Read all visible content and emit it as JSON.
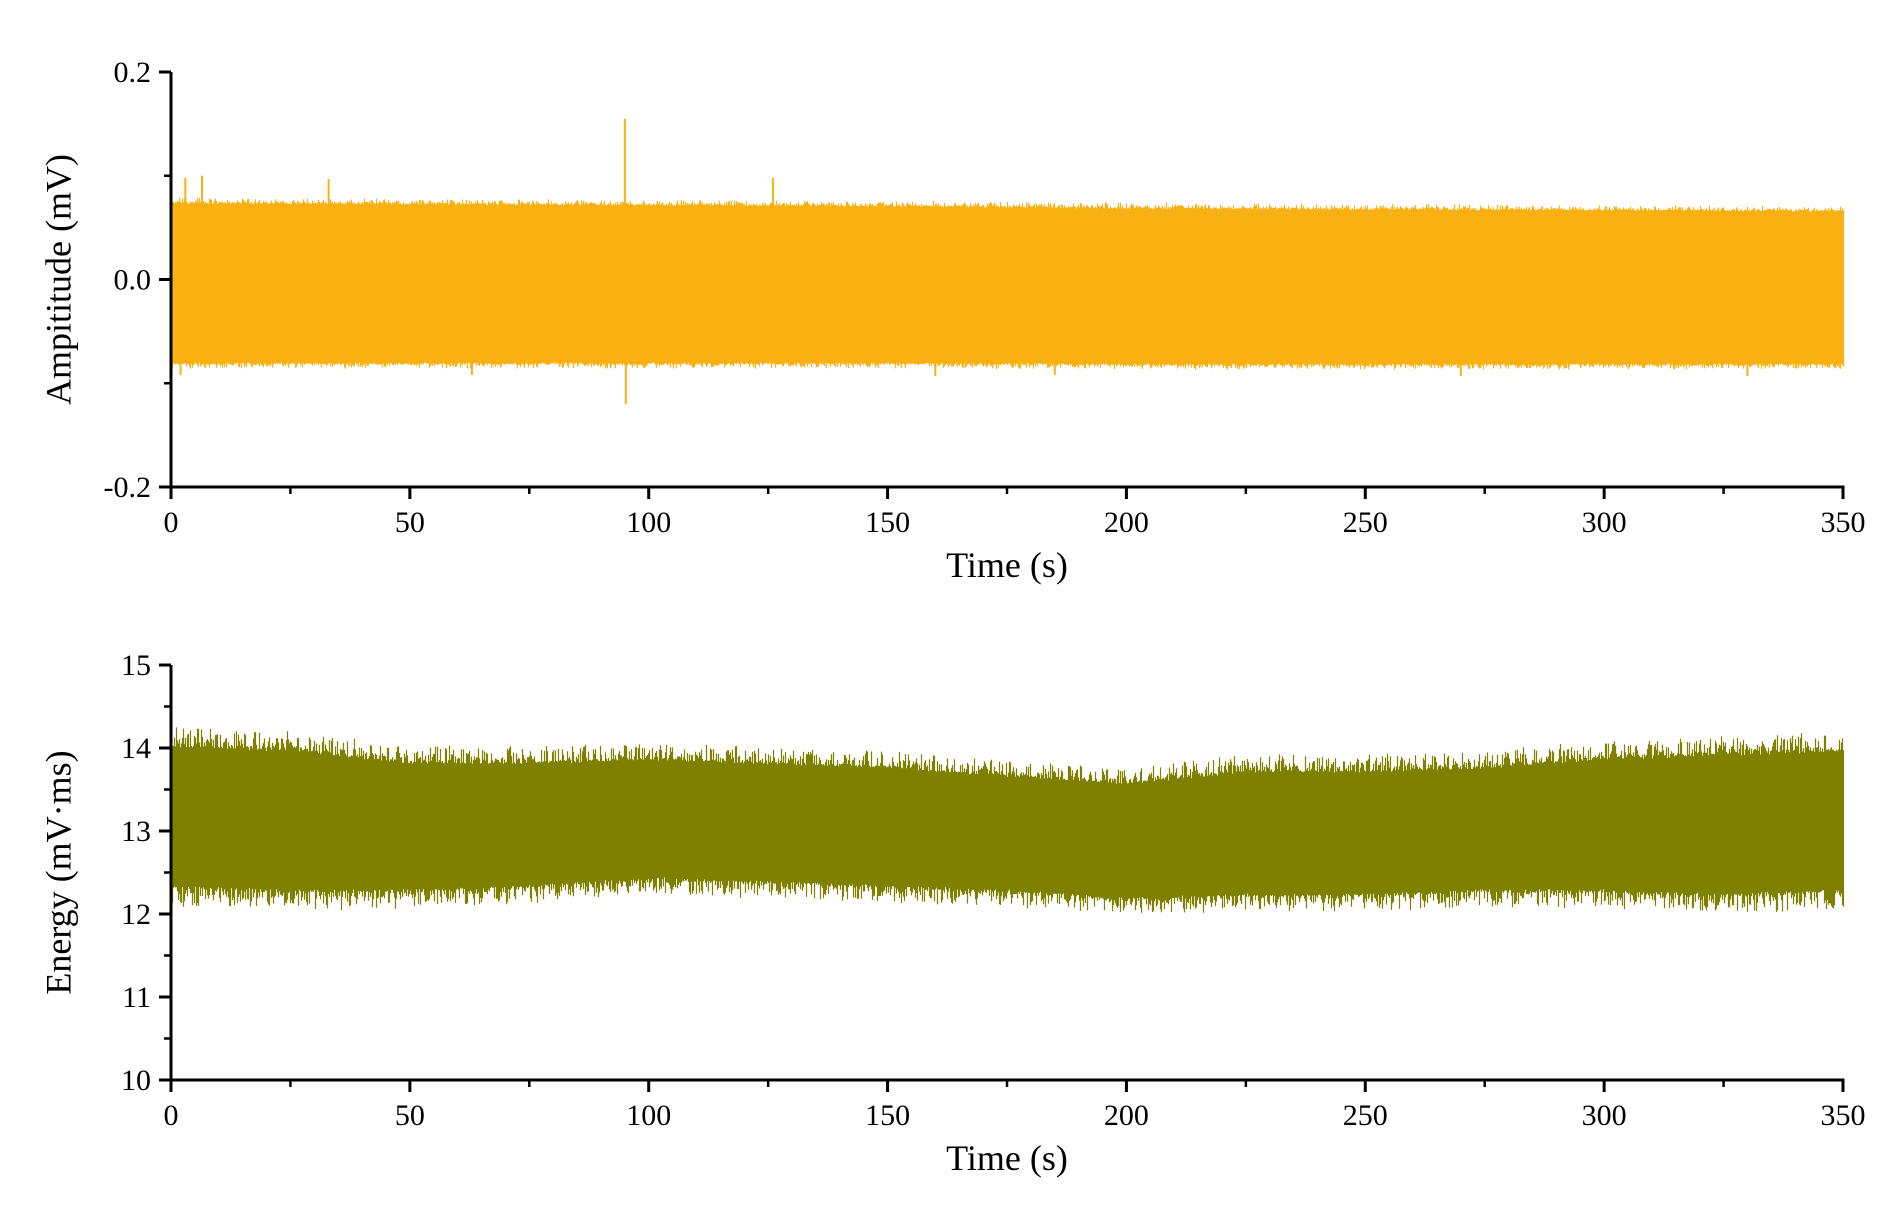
{
  "chart_data": [
    {
      "type": "line",
      "title": "",
      "xlabel": "Time (s)",
      "ylabel": "Ampititude (mV)",
      "xlim": [
        0,
        350
      ],
      "ylim": [
        -0.2,
        0.2
      ],
      "x_ticks": [
        "0",
        "50",
        "100",
        "150",
        "200",
        "250",
        "300",
        "350"
      ],
      "y_ticks": [
        "-0.2",
        "0.0",
        "0.2"
      ],
      "grid": false,
      "legend": "none",
      "color": "#F9B012",
      "series": [
        {
          "envelope_upper": [
            [
              0,
              0.073
            ],
            [
              50,
              0.072
            ],
            [
              100,
              0.071
            ],
            [
              150,
              0.07
            ],
            [
              200,
              0.068
            ],
            [
              250,
              0.067
            ],
            [
              300,
              0.066
            ],
            [
              350,
              0.065
            ]
          ],
          "envelope_lower": [
            [
              0,
              -0.08
            ],
            [
              50,
              -0.08
            ],
            [
              100,
              -0.08
            ],
            [
              150,
              -0.08
            ],
            [
              200,
              -0.081
            ],
            [
              250,
              -0.081
            ],
            [
              300,
              -0.081
            ],
            [
              350,
              -0.081
            ]
          ],
          "spikes": [
            [
              3,
              0.098
            ],
            [
              6.5,
              0.1
            ],
            [
              33,
              0.097
            ],
            [
              95,
              0.155
            ],
            [
              95.2,
              -0.12
            ],
            [
              126,
              0.098
            ],
            [
              2,
              -0.092
            ],
            [
              63,
              -0.092
            ],
            [
              160,
              -0.093
            ],
            [
              185,
              -0.092
            ],
            [
              270,
              -0.093
            ],
            [
              330,
              -0.093
            ]
          ]
        }
      ]
    },
    {
      "type": "line",
      "title": "",
      "xlabel": "Time (s)",
      "ylabel": "Energy (mV·ms)",
      "xlim": [
        0,
        350
      ],
      "ylim": [
        10,
        15
      ],
      "x_ticks": [
        "0",
        "50",
        "100",
        "150",
        "200",
        "250",
        "300",
        "350"
      ],
      "y_ticks": [
        "10",
        "11",
        "12",
        "13",
        "14",
        "15"
      ],
      "grid": false,
      "legend": "none",
      "color": "#808000",
      "series": [
        {
          "envelope_upper": [
            [
              0,
              14.0
            ],
            [
              25,
              13.95
            ],
            [
              50,
              13.8
            ],
            [
              75,
              13.8
            ],
            [
              100,
              13.85
            ],
            [
              125,
              13.8
            ],
            [
              150,
              13.75
            ],
            [
              175,
              13.65
            ],
            [
              200,
              13.55
            ],
            [
              225,
              13.7
            ],
            [
              250,
              13.7
            ],
            [
              275,
              13.75
            ],
            [
              300,
              13.85
            ],
            [
              325,
              13.9
            ],
            [
              350,
              13.95
            ]
          ],
          "envelope_lower": [
            [
              0,
              12.35
            ],
            [
              25,
              12.3
            ],
            [
              50,
              12.3
            ],
            [
              75,
              12.35
            ],
            [
              100,
              12.45
            ],
            [
              125,
              12.4
            ],
            [
              150,
              12.35
            ],
            [
              175,
              12.3
            ],
            [
              200,
              12.2
            ],
            [
              225,
              12.25
            ],
            [
              250,
              12.25
            ],
            [
              275,
              12.3
            ],
            [
              300,
              12.3
            ],
            [
              325,
              12.25
            ],
            [
              350,
              12.3
            ]
          ],
          "peak_max": 14.3,
          "peak_min": 11.95
        }
      ]
    }
  ]
}
